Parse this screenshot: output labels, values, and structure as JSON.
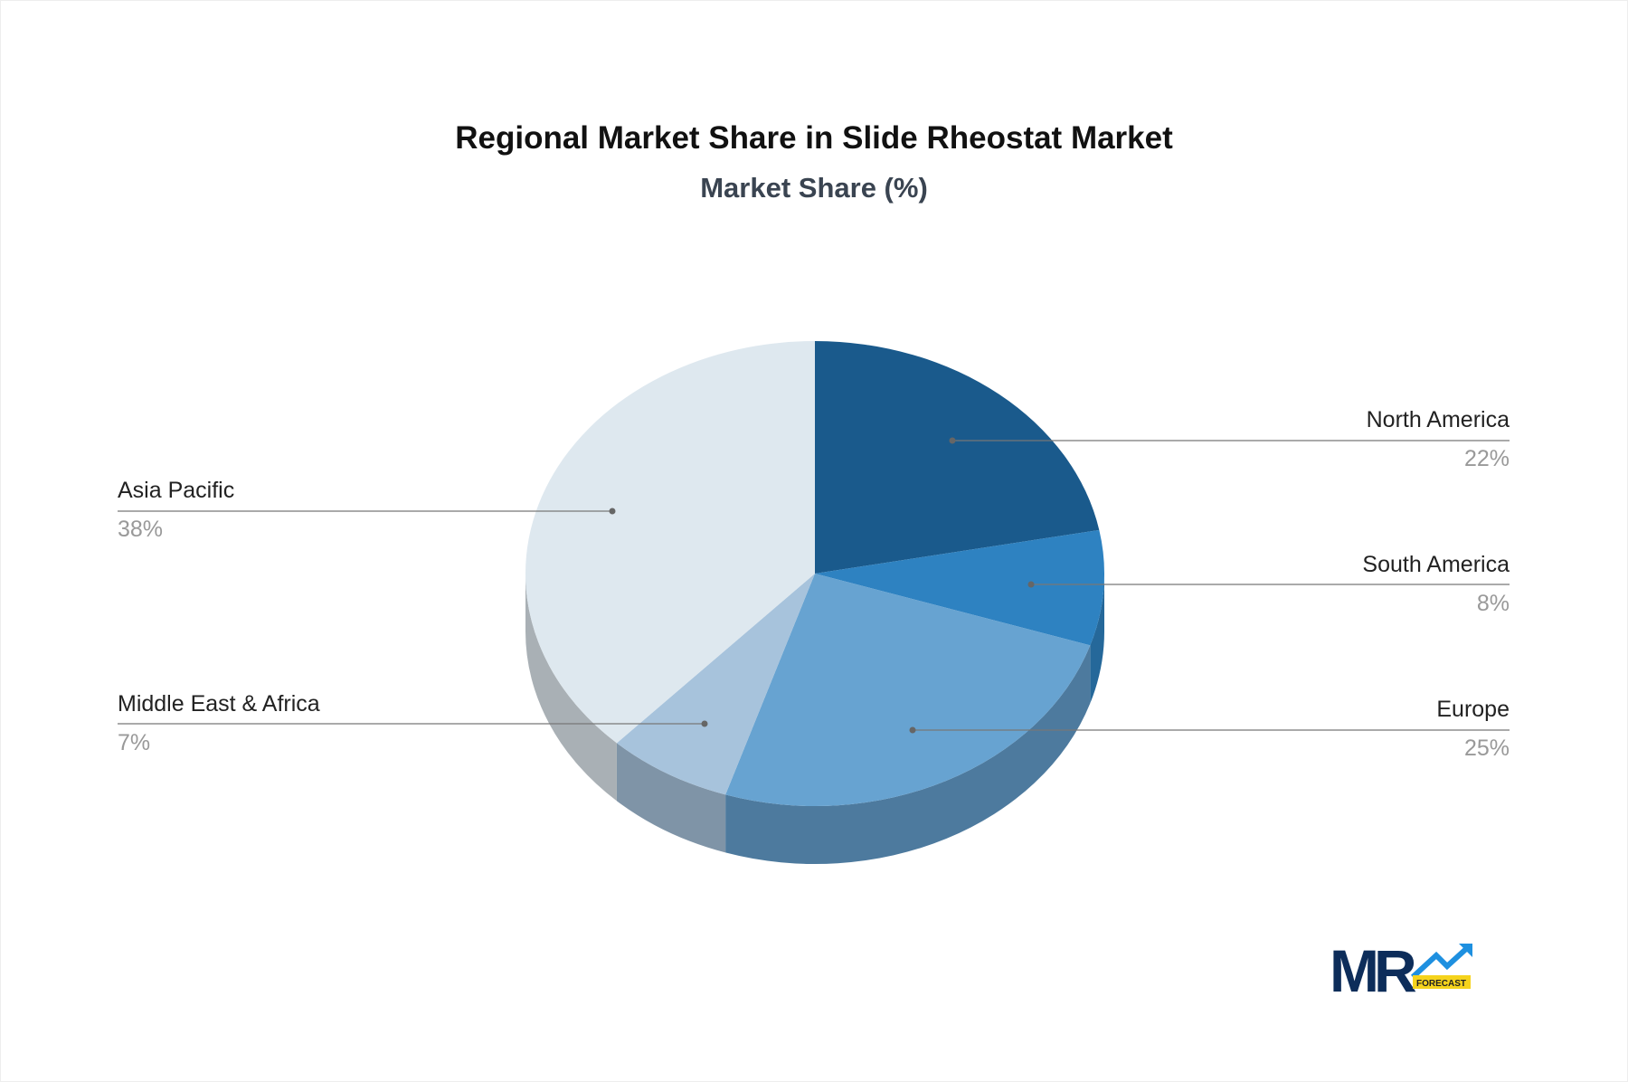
{
  "chart_data": {
    "type": "pie",
    "title": "Regional Market Share in Slide Rheostat Market",
    "subtitle": "Market Share (%)",
    "style": "3d",
    "slices": [
      {
        "label": "North America",
        "value": 22,
        "display": "22%",
        "color": "#1a5a8c",
        "side_color": "#144a74"
      },
      {
        "label": "South America",
        "value": 8,
        "display": "8%",
        "color": "#2e82c1",
        "side_color": "#25689a"
      },
      {
        "label": "Europe",
        "value": 25,
        "display": "25%",
        "color": "#67a3d1",
        "side_color": "#4d7a9e"
      },
      {
        "label": "Middle East & Africa",
        "value": 7,
        "display": "7%",
        "color": "#a7c3dc",
        "side_color": "#7f94a7"
      },
      {
        "label": "Asia Pacific",
        "value": 38,
        "display": "38%",
        "color": "#dee8ef",
        "side_color": "#a9b0b5"
      }
    ]
  },
  "logo": {
    "text": "MR",
    "tag": "FORECAST",
    "colors": {
      "mr": "#0d2d5a",
      "arrow": "#1e90e0",
      "tag_bg": "#f5d31c"
    }
  }
}
